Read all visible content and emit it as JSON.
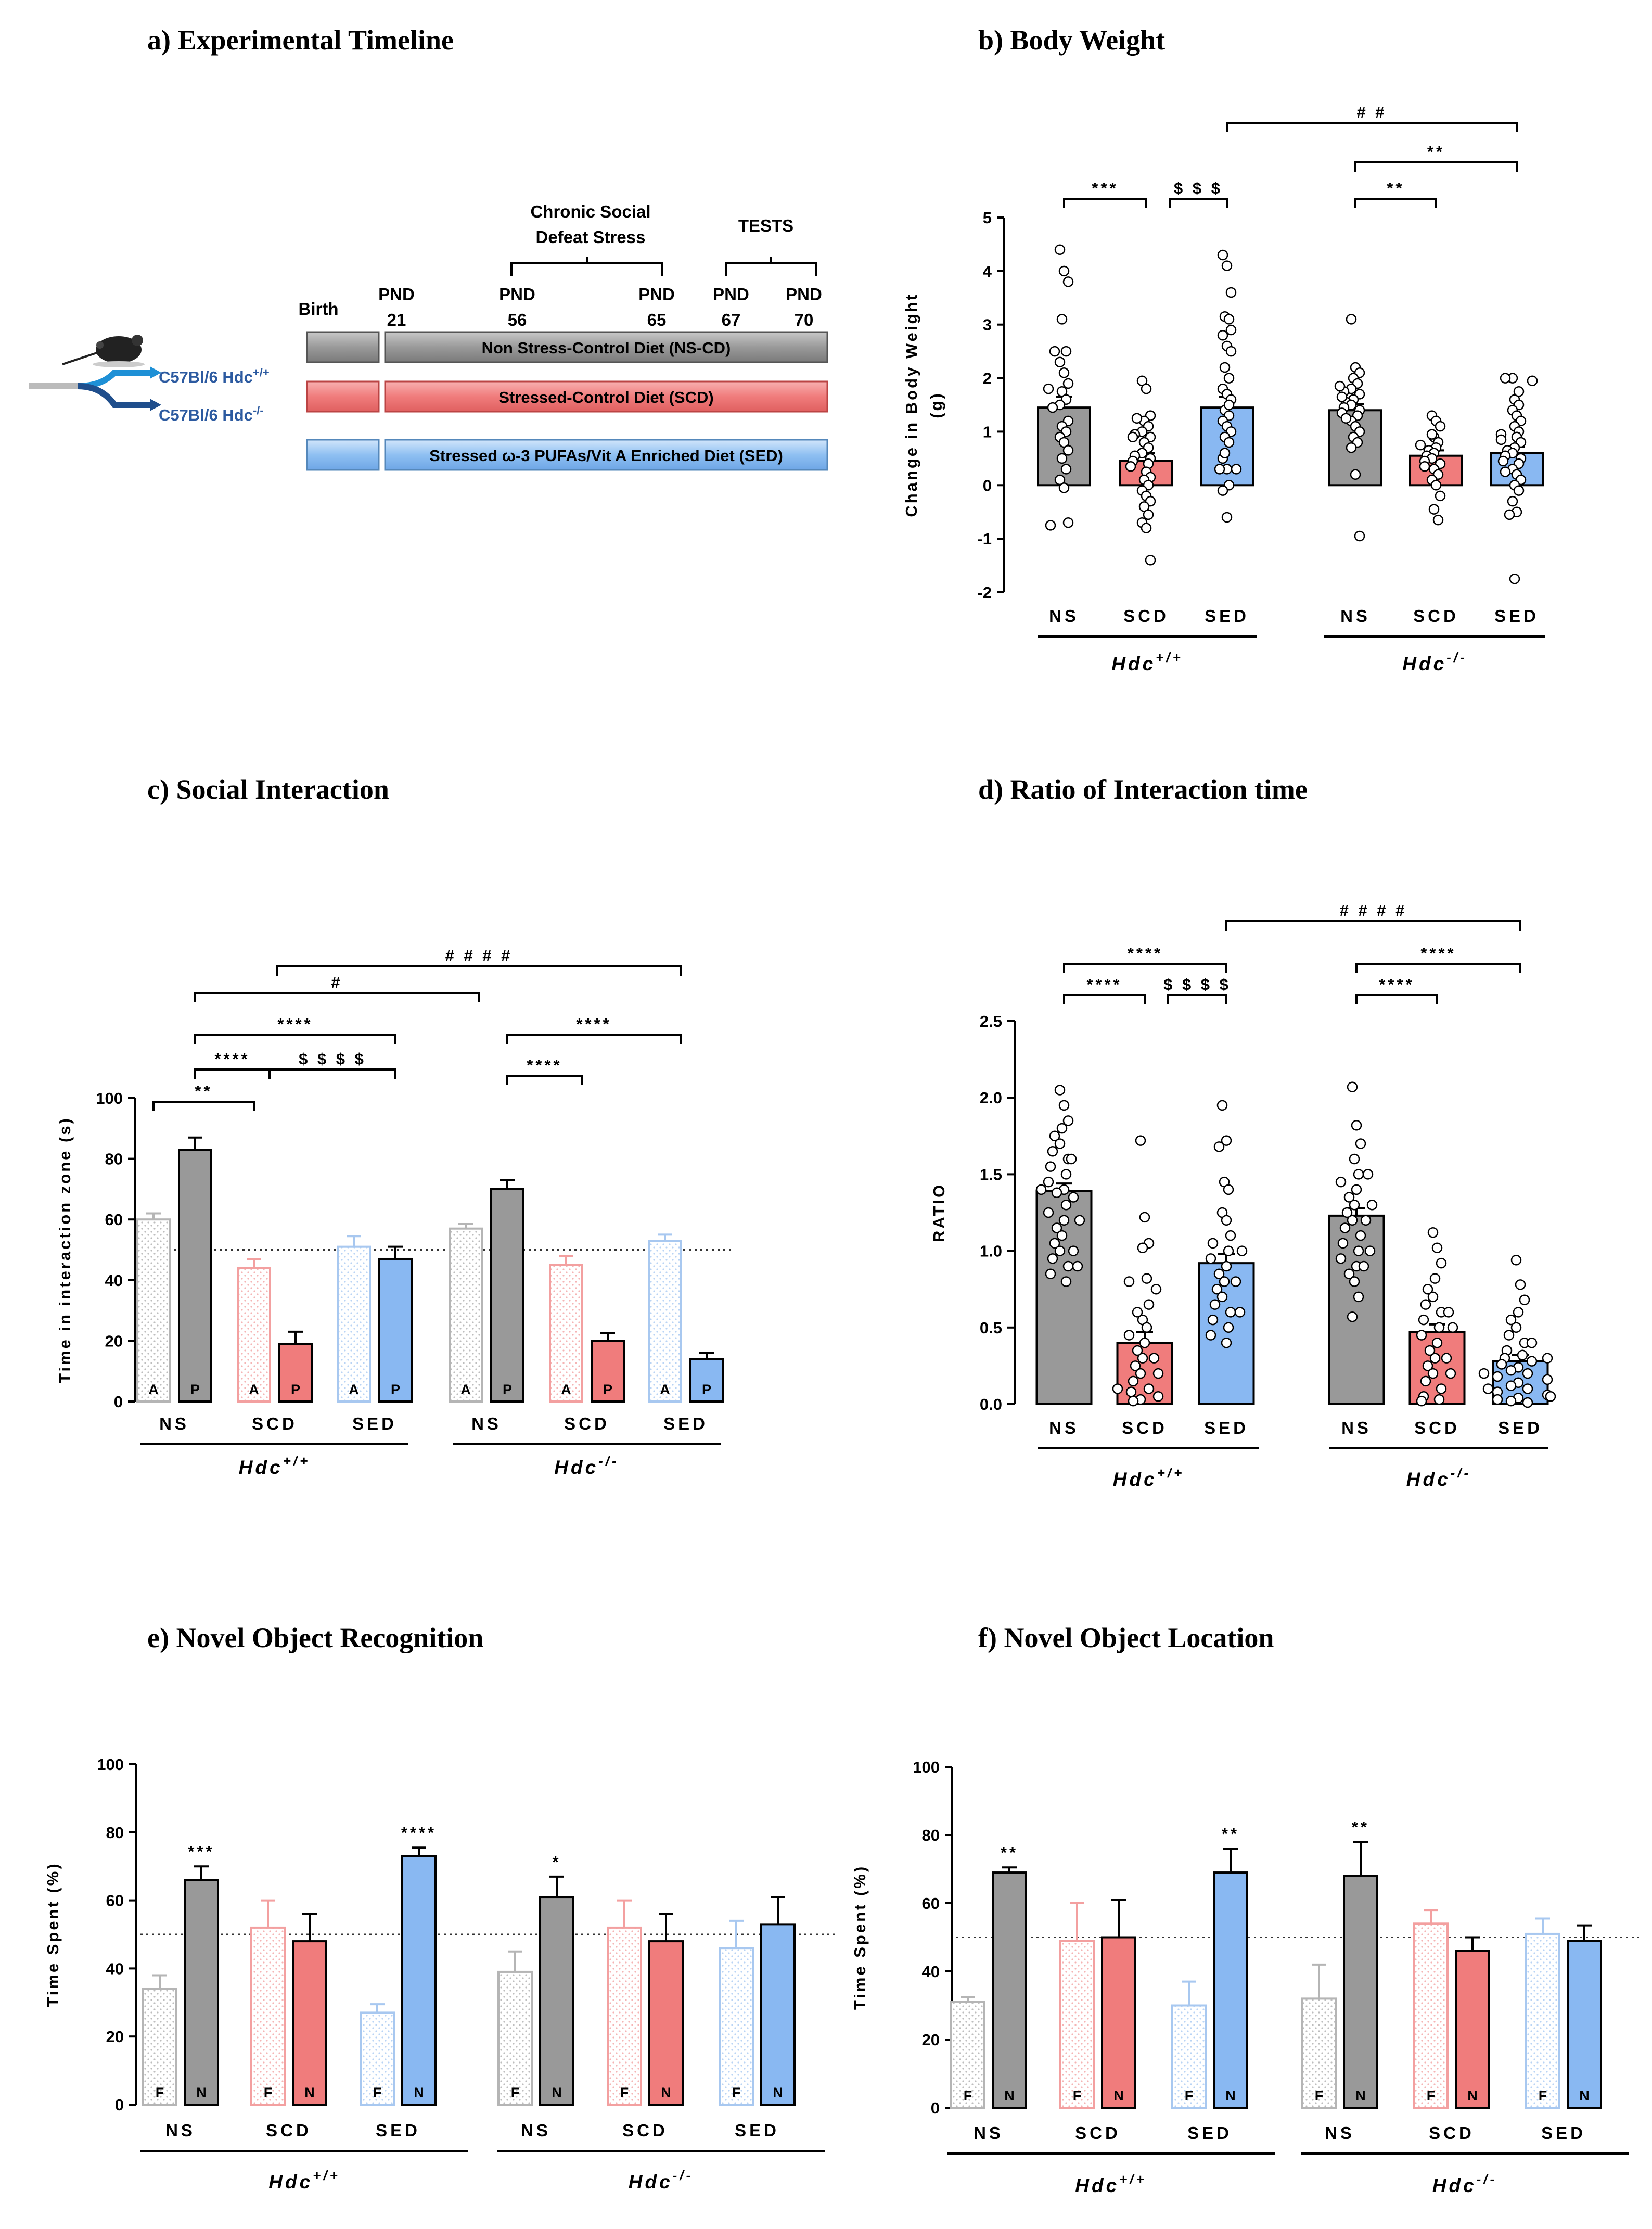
{
  "colors": {
    "NS": "#999999",
    "SCD": "#f07c7c",
    "SED": "#89b8f2",
    "strain": "#2c5aa0"
  },
  "timeline": {
    "title": "a) Experimental Timeline",
    "birth": "Birth",
    "stress_label_line1": "Chronic Social",
    "stress_label_line2": "Defeat Stress",
    "tests_label": "TESTS",
    "pnd_labels": [
      {
        "top": "PND",
        "bottom": "21"
      },
      {
        "top": "PND",
        "bottom": "56"
      },
      {
        "top": "PND",
        "bottom": "65"
      },
      {
        "top": "PND",
        "bottom": "67"
      },
      {
        "top": "PND",
        "bottom": "70"
      }
    ],
    "strains": [
      "C57Bl/6 Hdc+/+",
      "C57Bl/6 Hdc-/-"
    ],
    "strain_wt": {
      "base": "C57Bl/6 Hdc",
      "sup": "+/+"
    },
    "strain_ko": {
      "base": "C57Bl/6 Hdc",
      "sup": "-/-"
    },
    "bars": [
      "Non Stress-Control Diet (NS-CD)",
      "Stressed-Control Diet (SCD)",
      "Stressed ω-3 PUFAs/Vit A Enriched Diet (SED)"
    ]
  },
  "chart_data": [
    {
      "id": "b",
      "type": "bar",
      "title": "b) Body Weight",
      "ylabel_lines": [
        "Change in Body Weight",
        "(g)"
      ],
      "ylim": [
        -2,
        5
      ],
      "yticks": [
        -2,
        -1,
        0,
        1,
        2,
        3,
        4,
        5
      ],
      "groups": [
        {
          "name": "Hdc+/+",
          "base": "Hdc",
          "sup": "+/+"
        },
        {
          "name": "Hdc-/-",
          "base": "Hdc",
          "sup": "-/-"
        }
      ],
      "categories": [
        "NS",
        "SCD",
        "SED"
      ],
      "series": [
        {
          "group": "Hdc+/+",
          "name": "NS",
          "mean": 1.45,
          "sem": 0.2
        },
        {
          "group": "Hdc+/+",
          "name": "SCD",
          "mean": 0.45,
          "sem": 0.15
        },
        {
          "group": "Hdc+/+",
          "name": "SED",
          "mean": 1.45,
          "sem": 0.2
        },
        {
          "group": "Hdc-/-",
          "name": "NS",
          "mean": 1.4,
          "sem": 0.12
        },
        {
          "group": "Hdc-/-",
          "name": "SCD",
          "mean": 0.55,
          "sem": 0.1
        },
        {
          "group": "Hdc-/-",
          "name": "SED",
          "mean": 0.6,
          "sem": 0.12
        }
      ],
      "points": [
        [
          4.4,
          4.0,
          3.8,
          3.1,
          2.5,
          2.3,
          2.1,
          1.9,
          1.75,
          1.6,
          1.5,
          1.45,
          1.2,
          1.1,
          1.0,
          0.9,
          0.8,
          0.65,
          0.5,
          0.3,
          0.1,
          -0.05,
          -0.7,
          -0.75,
          2.5,
          1.8
        ],
        [
          1.95,
          1.8,
          1.3,
          1.2,
          1.1,
          1.0,
          0.95,
          0.9,
          0.8,
          0.7,
          0.6,
          0.55,
          0.5,
          0.45,
          0.4,
          0.35,
          0.25,
          0.15,
          0.1,
          0.0,
          -0.1,
          -0.2,
          -0.3,
          -0.4,
          -0.55,
          -0.7,
          -0.8,
          -1.4,
          0.9,
          1.25
        ],
        [
          4.3,
          4.1,
          3.6,
          3.15,
          3.1,
          2.8,
          2.6,
          2.5,
          2.2,
          2.0,
          1.8,
          1.7,
          1.6,
          1.4,
          1.3,
          1.2,
          1.1,
          1.0,
          0.9,
          0.8,
          0.5,
          0.3,
          0.3,
          0.3,
          0.0,
          -0.1,
          -0.6,
          2.9,
          0.6,
          1.5
        ],
        [
          3.1,
          2.2,
          2.1,
          2.0,
          1.9,
          1.8,
          1.75,
          1.7,
          1.6,
          1.55,
          1.5,
          1.45,
          1.4,
          1.35,
          1.3,
          1.2,
          1.1,
          1.0,
          0.9,
          0.8,
          0.7,
          0.2,
          -0.95,
          1.65,
          1.25,
          1.85
        ],
        [
          1.3,
          1.2,
          1.1,
          0.9,
          0.8,
          0.75,
          0.7,
          0.65,
          0.6,
          0.55,
          0.5,
          0.45,
          0.4,
          0.3,
          0.2,
          0.1,
          0.0,
          -0.2,
          -0.45,
          -0.65,
          0.95,
          0.35
        ],
        [
          2.0,
          2.0,
          1.95,
          1.6,
          1.5,
          1.4,
          1.3,
          1.2,
          1.1,
          1.0,
          0.95,
          0.9,
          0.8,
          0.7,
          0.65,
          0.6,
          0.55,
          0.5,
          0.45,
          0.4,
          0.3,
          0.2,
          0.1,
          0.0,
          -0.1,
          -0.3,
          -0.5,
          -0.55,
          -1.75,
          1.75,
          0.85,
          0.25
        ]
      ],
      "significance": [
        {
          "from": 0,
          "to": 1,
          "label": "***"
        },
        {
          "from": 1,
          "to": 2,
          "label": "$ $ $"
        },
        {
          "from": 3,
          "to": 4,
          "label": "**"
        },
        {
          "from": 3,
          "to": 5,
          "label": "**"
        },
        {
          "from": 2,
          "to": 5,
          "label": "# #"
        }
      ]
    },
    {
      "id": "c",
      "type": "bar",
      "title": "c) Social Interaction",
      "ylabel_lines": [
        "Time in interaction zone (s)"
      ],
      "ylim": [
        0,
        100
      ],
      "yticks": [
        0,
        20,
        40,
        60,
        80,
        100
      ],
      "ref_line": 50,
      "groups": [
        {
          "name": "Hdc+/+",
          "base": "Hdc",
          "sup": "+/+"
        },
        {
          "name": "Hdc-/-",
          "base": "Hdc",
          "sup": "-/-"
        }
      ],
      "categories": [
        "NS",
        "SCD",
        "SED"
      ],
      "pair_labels": [
        "A",
        "P"
      ],
      "series": [
        {
          "group": "Hdc+/+",
          "name": "NS",
          "A": 60,
          "A_sem": 2,
          "P": 83,
          "P_sem": 4
        },
        {
          "group": "Hdc+/+",
          "name": "SCD",
          "A": 44,
          "A_sem": 3,
          "P": 19,
          "P_sem": 4
        },
        {
          "group": "Hdc+/+",
          "name": "SED",
          "A": 51,
          "A_sem": 3.5,
          "P": 47,
          "P_sem": 4
        },
        {
          "group": "Hdc-/-",
          "name": "NS",
          "A": 57,
          "A_sem": 1.5,
          "P": 70,
          "P_sem": 3
        },
        {
          "group": "Hdc-/-",
          "name": "SCD",
          "A": 45,
          "A_sem": 3,
          "P": 20,
          "P_sem": 2.5
        },
        {
          "group": "Hdc-/-",
          "name": "SED",
          "A": 53,
          "A_sem": 2,
          "P": 14,
          "P_sem": 2
        }
      ],
      "significance": [
        {
          "from": [
            0,
            "A"
          ],
          "to": [
            1,
            "A"
          ],
          "label": "**"
        },
        {
          "from": [
            0,
            "P"
          ],
          "to": [
            1,
            "A"
          ],
          "label": "****"
        },
        {
          "from": [
            1,
            "A"
          ],
          "to": [
            2,
            "P"
          ],
          "label": "$ $ $ $"
        },
        {
          "from": [
            0,
            "P"
          ],
          "to": [
            2,
            "P"
          ],
          "label": "****"
        },
        {
          "from": [
            0,
            "P"
          ],
          "to": [
            3,
            "A"
          ],
          "label": "#"
        },
        {
          "from": [
            1,
            "P"
          ],
          "to": [
            5,
            "A"
          ],
          "label": "# # # #"
        },
        {
          "from": [
            3,
            "P"
          ],
          "to": [
            4,
            "A"
          ],
          "label": "****"
        },
        {
          "from": [
            3,
            "P"
          ],
          "to": [
            5,
            "A"
          ],
          "label": "****"
        }
      ]
    },
    {
      "id": "d",
      "type": "bar",
      "title": "d) Ratio of Interaction time",
      "ylabel_lines": [
        "RATIO"
      ],
      "ylim": [
        0,
        2.5
      ],
      "yticks": [
        "0.0",
        "0.5",
        "1.0",
        "1.5",
        "2.0",
        "2.5"
      ],
      "groups": [
        {
          "name": "Hdc+/+",
          "base": "Hdc",
          "sup": "+/+"
        },
        {
          "name": "Hdc-/-",
          "base": "Hdc",
          "sup": "-/-"
        }
      ],
      "categories": [
        "NS",
        "SCD",
        "SED"
      ],
      "series": [
        {
          "group": "Hdc+/+",
          "name": "NS",
          "mean": 1.39,
          "sem": 0.05
        },
        {
          "group": "Hdc+/+",
          "name": "SCD",
          "mean": 0.4,
          "sem": 0.07
        },
        {
          "group": "Hdc+/+",
          "name": "SED",
          "mean": 0.92,
          "sem": 0.06
        },
        {
          "group": "Hdc-/-",
          "name": "NS",
          "mean": 1.23,
          "sem": 0.05
        },
        {
          "group": "Hdc-/-",
          "name": "SCD",
          "mean": 0.47,
          "sem": 0.05
        },
        {
          "group": "Hdc-/-",
          "name": "SED",
          "mean": 0.28,
          "sem": 0.04
        }
      ],
      "points": [
        [
          2.05,
          1.95,
          1.85,
          1.8,
          1.75,
          1.7,
          1.65,
          1.6,
          1.55,
          1.5,
          1.45,
          1.4,
          1.38,
          1.35,
          1.3,
          1.25,
          1.2,
          1.15,
          1.1,
          1.05,
          1.0,
          0.95,
          0.9,
          0.85,
          0.8,
          1.6,
          1.4,
          1.2,
          1.0,
          0.9
        ],
        [
          1.72,
          1.22,
          1.05,
          1.02,
          0.82,
          0.8,
          0.75,
          0.65,
          0.55,
          0.5,
          0.45,
          0.4,
          0.35,
          0.3,
          0.25,
          0.2,
          0.15,
          0.1,
          0.08,
          0.05,
          0.03,
          0.02,
          0.6,
          0.3,
          0.2,
          0.1
        ],
        [
          1.95,
          1.72,
          1.68,
          1.45,
          1.4,
          1.25,
          1.2,
          1.1,
          1.05,
          1.0,
          0.95,
          0.9,
          0.85,
          0.8,
          0.75,
          0.7,
          0.65,
          0.6,
          0.55,
          0.5,
          0.45,
          0.4,
          1.0,
          0.8,
          0.6
        ],
        [
          2.07,
          1.82,
          1.7,
          1.6,
          1.5,
          1.45,
          1.4,
          1.35,
          1.3,
          1.25,
          1.2,
          1.15,
          1.1,
          1.05,
          1.0,
          0.95,
          0.9,
          0.85,
          0.8,
          0.7,
          0.57,
          1.5,
          1.3,
          1.2,
          1.0,
          0.9
        ],
        [
          1.12,
          1.02,
          0.92,
          0.82,
          0.75,
          0.7,
          0.65,
          0.6,
          0.55,
          0.5,
          0.45,
          0.4,
          0.35,
          0.3,
          0.25,
          0.2,
          0.15,
          0.1,
          0.05,
          0.03,
          0.02,
          0.6,
          0.5,
          0.3,
          0.2
        ],
        [
          0.94,
          0.78,
          0.68,
          0.6,
          0.55,
          0.5,
          0.45,
          0.4,
          0.35,
          0.32,
          0.3,
          0.28,
          0.26,
          0.24,
          0.22,
          0.2,
          0.18,
          0.16,
          0.14,
          0.12,
          0.1,
          0.08,
          0.06,
          0.04,
          0.02,
          0.01,
          0.4,
          0.3,
          0.2,
          0.1,
          0.05,
          0.03
        ]
      ],
      "significance": [
        {
          "from": 0,
          "to": 1,
          "label": "****"
        },
        {
          "from": 1,
          "to": 2,
          "label": "$ $ $ $"
        },
        {
          "from": 0,
          "to": 2,
          "label": "****"
        },
        {
          "from": 3,
          "to": 4,
          "label": "****"
        },
        {
          "from": 3,
          "to": 5,
          "label": "****"
        },
        {
          "from": 2,
          "to": 5,
          "label": "# # # #"
        }
      ]
    },
    {
      "id": "e",
      "type": "bar",
      "title": "e) Novel Object Recognition",
      "ylabel_lines": [
        "Time Spent (%)"
      ],
      "ylim": [
        0,
        100
      ],
      "yticks": [
        0,
        20,
        40,
        60,
        80,
        100
      ],
      "ref_line": 50,
      "groups": [
        {
          "name": "Hdc+/+",
          "base": "Hdc",
          "sup": "+/+"
        },
        {
          "name": "Hdc-/-",
          "base": "Hdc",
          "sup": "-/-"
        }
      ],
      "categories": [
        "NS",
        "SCD",
        "SED"
      ],
      "pair_labels": [
        "F",
        "N"
      ],
      "series": [
        {
          "group": "Hdc+/+",
          "name": "NS",
          "F": 34,
          "F_sem": 4,
          "N": 66,
          "N_sem": 4,
          "sig": "***"
        },
        {
          "group": "Hdc+/+",
          "name": "SCD",
          "F": 52,
          "F_sem": 8,
          "N": 48,
          "N_sem": 8,
          "sig": ""
        },
        {
          "group": "Hdc+/+",
          "name": "SED",
          "F": 27,
          "F_sem": 2.5,
          "N": 73,
          "N_sem": 2.5,
          "sig": "****"
        },
        {
          "group": "Hdc-/-",
          "name": "NS",
          "F": 39,
          "F_sem": 6,
          "N": 61,
          "N_sem": 6,
          "sig": "*"
        },
        {
          "group": "Hdc-/-",
          "name": "SCD",
          "F": 52,
          "F_sem": 8,
          "N": 48,
          "N_sem": 8,
          "sig": ""
        },
        {
          "group": "Hdc-/-",
          "name": "SED",
          "F": 46,
          "F_sem": 8,
          "N": 53,
          "N_sem": 8,
          "sig": ""
        }
      ]
    },
    {
      "id": "f",
      "type": "bar",
      "title": "f) Novel Object Location",
      "ylabel_lines": [
        "Time Spent (%)"
      ],
      "ylim": [
        0,
        100
      ],
      "yticks": [
        0,
        20,
        40,
        60,
        80,
        100
      ],
      "ref_line": 50,
      "groups": [
        {
          "name": "Hdc+/+",
          "base": "Hdc",
          "sup": "+/+"
        },
        {
          "name": "Hdc-/-",
          "base": "Hdc",
          "sup": "-/-"
        }
      ],
      "categories": [
        "NS",
        "SCD",
        "SED"
      ],
      "pair_labels": [
        "F",
        "N"
      ],
      "series": [
        {
          "group": "Hdc+/+",
          "name": "NS",
          "F": 31,
          "F_sem": 1.5,
          "N": 69,
          "N_sem": 1.5,
          "sig": "**"
        },
        {
          "group": "Hdc+/+",
          "name": "SCD",
          "F": 49,
          "F_sem": 11,
          "N": 50,
          "N_sem": 11,
          "sig": ""
        },
        {
          "group": "Hdc+/+",
          "name": "SED",
          "F": 30,
          "F_sem": 7,
          "N": 69,
          "N_sem": 7,
          "sig": "**"
        },
        {
          "group": "Hdc-/-",
          "name": "NS",
          "F": 32,
          "F_sem": 10,
          "N": 68,
          "N_sem": 10,
          "sig": "**"
        },
        {
          "group": "Hdc-/-",
          "name": "SCD",
          "F": 54,
          "F_sem": 4,
          "N": 46,
          "N_sem": 4,
          "sig": ""
        },
        {
          "group": "Hdc-/-",
          "name": "SED",
          "F": 51,
          "F_sem": 4.5,
          "N": 49,
          "N_sem": 4.5,
          "sig": ""
        }
      ]
    }
  ]
}
